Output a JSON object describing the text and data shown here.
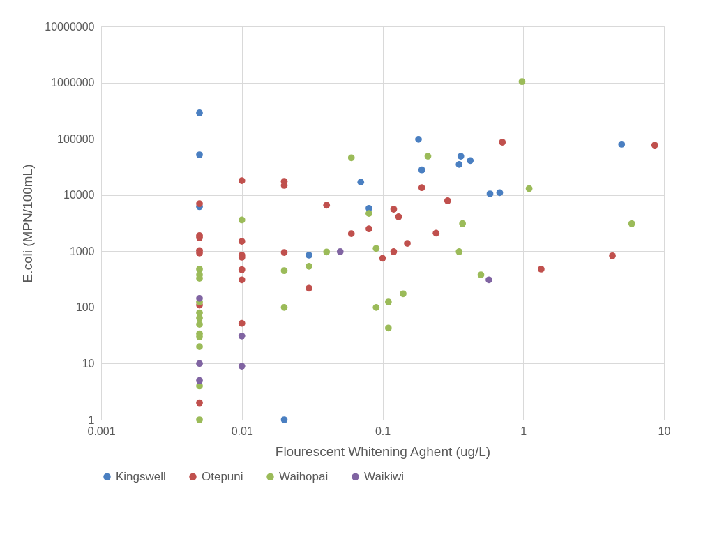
{
  "chart_data": {
    "type": "scatter",
    "xlabel": "Flourescent Whitening Aghent (ug/L)",
    "ylabel": "E.coli (MPN/100mL)",
    "log": "xy",
    "xlim": [
      0.001,
      10
    ],
    "xticks": [
      0.001,
      0.01,
      0.1,
      1,
      10
    ],
    "ylim": [
      1,
      10000000
    ],
    "yticks": [
      1,
      10,
      100,
      1000,
      10000,
      100000,
      1000000,
      10000000
    ],
    "grid": true,
    "legend": "bottom",
    "marker": "circle",
    "series": [
      {
        "name": "Kingswell",
        "color": "#4a7fc1",
        "x": [
          0.005,
          0.005,
          0.005,
          0.03,
          0.02,
          0.07,
          0.08,
          0.18,
          0.19,
          0.36,
          0.35,
          0.42,
          0.58,
          0.68,
          5.0
        ],
        "values": [
          290000,
          52000,
          6200,
          850,
          1,
          17000,
          5800,
          98000,
          28000,
          49000,
          35000,
          41000,
          10500,
          11000,
          80000
        ]
      },
      {
        "name": "Otepuni",
        "color": "#c0504d",
        "x": [
          0.005,
          0.005,
          0.005,
          0.005,
          0.005,
          0.005,
          0.005,
          0.01,
          0.01,
          0.01,
          0.01,
          0.01,
          0.01,
          0.01,
          0.02,
          0.02,
          0.02,
          0.04,
          0.03,
          0.71,
          0.19,
          0.29,
          0.12,
          0.13,
          0.08,
          0.06,
          0.24,
          0.15,
          0.12,
          0.1,
          1.34,
          8.6,
          4.3
        ],
        "values": [
          7000,
          1900,
          1750,
          1030,
          930,
          110,
          2,
          18000,
          1500,
          850,
          780,
          470,
          310,
          52,
          17500,
          14800,
          950,
          6600,
          220,
          87000,
          13500,
          7900,
          5600,
          4100,
          2500,
          2050,
          2100,
          1380,
          980,
          750,
          480,
          77000,
          830
        ]
      },
      {
        "name": "Waihopai",
        "color": "#9bbb59",
        "x": [
          0.005,
          0.005,
          0.005,
          0.005,
          0.005,
          0.005,
          0.005,
          0.005,
          0.005,
          0.005,
          0.005,
          0.005,
          0.01,
          0.02,
          0.02,
          0.03,
          0.04,
          0.06,
          0.21,
          1.1,
          0.08,
          0.37,
          0.09,
          0.35,
          0.5,
          0.14,
          0.11,
          0.09,
          0.11,
          0.98,
          5.9
        ],
        "values": [
          480,
          380,
          330,
          125,
          80,
          65,
          50,
          34,
          30,
          20,
          4,
          1,
          3600,
          450,
          100,
          540,
          970,
          46000,
          49000,
          13000,
          4700,
          3100,
          1120,
          980,
          380,
          175,
          125,
          100,
          43,
          1040000,
          3100
        ]
      },
      {
        "name": "Waikiwi",
        "color": "#8064a2",
        "x": [
          0.005,
          0.005,
          0.005,
          0.01,
          0.01,
          0.05,
          0.57
        ],
        "values": [
          145,
          10,
          5,
          31,
          9,
          980,
          310
        ]
      }
    ]
  }
}
